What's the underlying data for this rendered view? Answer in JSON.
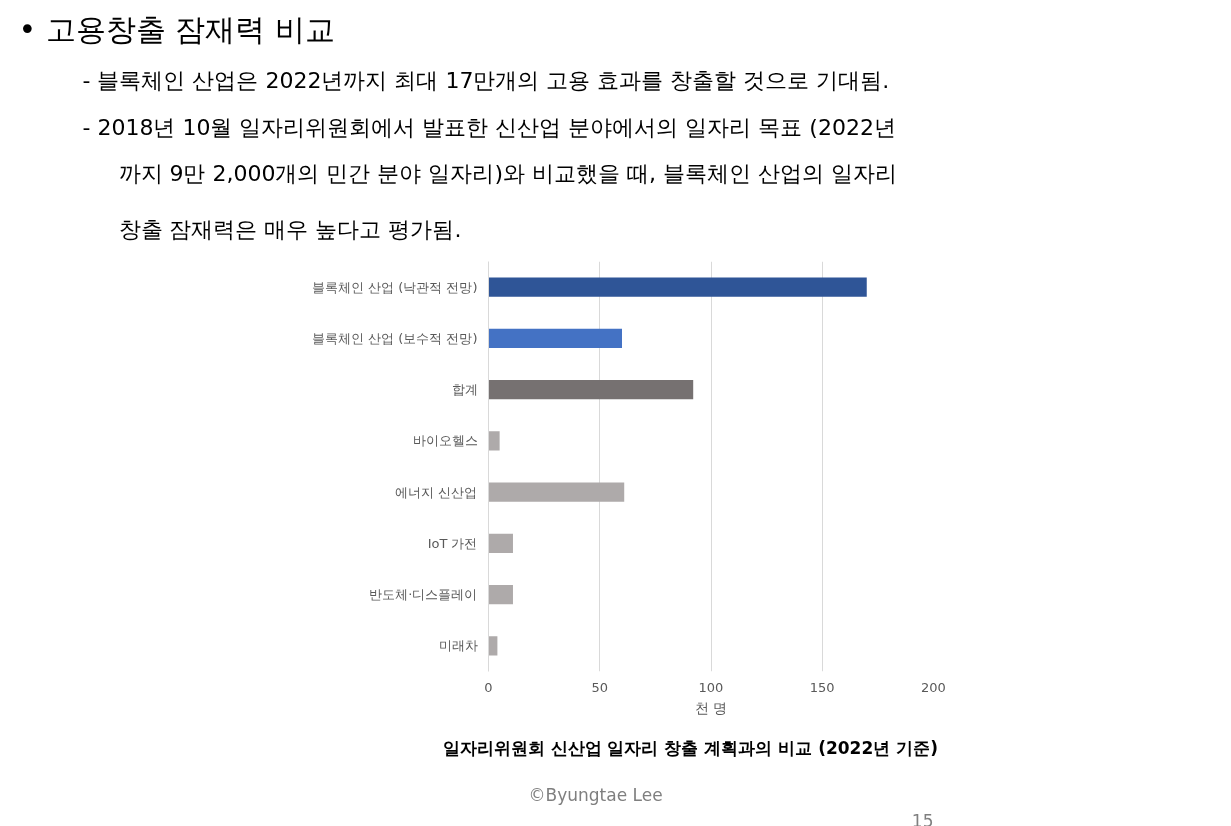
{
  "chart_data": {
    "type": "bar",
    "orientation": "horizontal",
    "title": "일자리위원회  신산업  일자리  창출  계획과의  비교  (2022년  기준)",
    "xlabel": "천 명",
    "categories": [
      "블록체인 산업 (낙관적 전망)",
      "블록체인 산업 (보수적 전망)",
      "합계",
      "바이오헬스",
      "에너지 신산업",
      "IoT 가전",
      "반도체·디스플레이",
      "미래차"
    ],
    "values": [
      170,
      60,
      92,
      5,
      61,
      11,
      11,
      4
    ],
    "colors": [
      "#2f5597",
      "#4472c4",
      "#767171",
      "#aeaaaa",
      "#aeaaaa",
      "#aeaaaa",
      "#aeaaaa",
      "#aeaaaa"
    ],
    "xlim": [
      0,
      200
    ],
    "xticks": [
      0,
      50,
      100,
      150,
      200
    ],
    "grid": "x",
    "annotations": [
      "•   고용창출 잠재력 비교",
      "-     블록체인 산업은 2022년까지 최대 17만개의 고용 효과를 창출할 것으로 기대됨.",
      "-     2018년 10월 일자리위원회에서 발표한 신산업 분야에서의 일자리 목표 (2022년",
      "까지 9만 2,000개의 민간 분야 일자리)와 비교했을 때, 블록체인 산업의 일자리",
      "창출 잠재력은 매우 높다고 평가됨.",
      "©Byungtae Lee",
      "15"
    ]
  }
}
